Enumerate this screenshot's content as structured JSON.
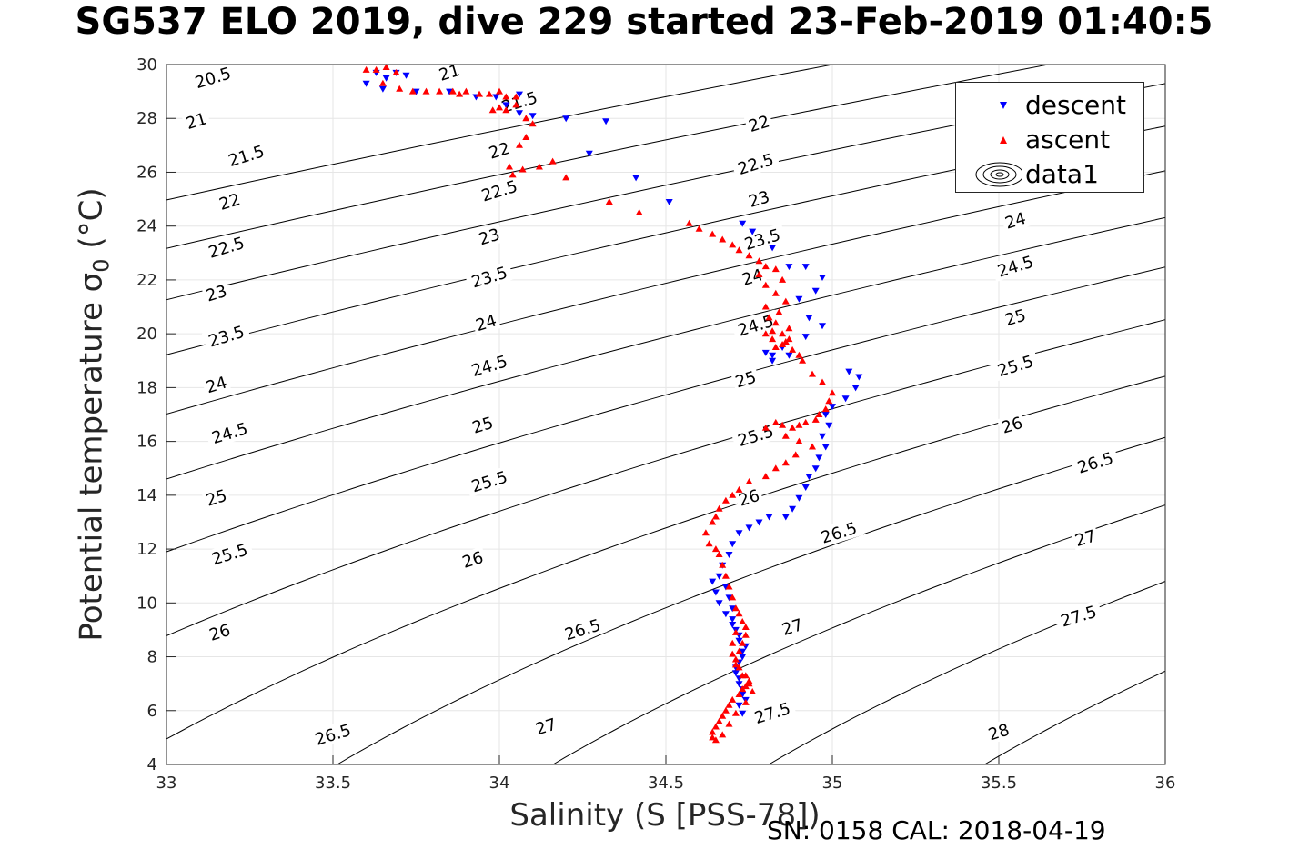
{
  "title": "SG537 ELO 2019, dive 229 started 23-Feb-2019 01:40:5",
  "footer": "SN: 0158  CAL: 2018-04-19",
  "chart_data": {
    "type": "scatter",
    "xlabel": "Salinity (S [PSS-78])",
    "ylabel_text": "Potential temperature σ",
    "ylabel_sub": "0",
    "ylabel_unit": " (°C)",
    "xlim": [
      33,
      36
    ],
    "ylim": [
      4,
      30
    ],
    "xticks": [
      "33",
      "33.5",
      "34",
      "34.5",
      "35",
      "35.5",
      "36"
    ],
    "yticks": [
      "4",
      "6",
      "8",
      "10",
      "12",
      "14",
      "16",
      "18",
      "20",
      "22",
      "24",
      "26",
      "28",
      "30"
    ],
    "grid": true,
    "legend_position": "top-right",
    "legend": [
      "descent",
      "ascent",
      "data1"
    ],
    "contour_levels": [
      "20.5",
      "21",
      "21.5",
      "22",
      "22.5",
      "23",
      "23.5",
      "24",
      "24.5",
      "25",
      "25.5",
      "26",
      "26.5",
      "27",
      "27.5",
      "28"
    ],
    "contour_labels": [
      {
        "text": "20.5",
        "s": 33.14,
        "t": 29.5
      },
      {
        "text": "21",
        "s": 33.85,
        "t": 29.7
      },
      {
        "text": "21",
        "s": 33.09,
        "t": 27.9
      },
      {
        "text": "21.5",
        "s": 34.06,
        "t": 28.6
      },
      {
        "text": "21.5",
        "s": 33.24,
        "t": 26.6
      },
      {
        "text": "22",
        "s": 34.78,
        "t": 27.8
      },
      {
        "text": "22",
        "s": 33.19,
        "t": 24.9
      },
      {
        "text": "22",
        "s": 34.0,
        "t": 26.8
      },
      {
        "text": "22.5",
        "s": 34.77,
        "t": 26.3
      },
      {
        "text": "22.5",
        "s": 33.18,
        "t": 23.2
      },
      {
        "text": "22.5",
        "s": 34.0,
        "t": 25.3
      },
      {
        "text": "23",
        "s": 34.78,
        "t": 25.0
      },
      {
        "text": "23",
        "s": 33.15,
        "t": 21.5
      },
      {
        "text": "23",
        "s": 33.97,
        "t": 23.6
      },
      {
        "text": "23.5",
        "s": 34.79,
        "t": 23.5
      },
      {
        "text": "23.5",
        "s": 33.18,
        "t": 19.9
      },
      {
        "text": "23.5",
        "s": 33.97,
        "t": 22.1
      },
      {
        "text": "24",
        "s": 35.55,
        "t": 24.2
      },
      {
        "text": "24",
        "s": 34.76,
        "t": 22.1
      },
      {
        "text": "24",
        "s": 33.15,
        "t": 18.1
      },
      {
        "text": "24",
        "s": 33.96,
        "t": 20.4
      },
      {
        "text": "24.5",
        "s": 35.55,
        "t": 22.5
      },
      {
        "text": "24.5",
        "s": 34.77,
        "t": 20.3
      },
      {
        "text": "24.5",
        "s": 33.19,
        "t": 16.3
      },
      {
        "text": "24.5",
        "s": 33.97,
        "t": 18.8
      },
      {
        "text": "25",
        "s": 35.55,
        "t": 20.6
      },
      {
        "text": "25",
        "s": 34.74,
        "t": 18.3
      },
      {
        "text": "25",
        "s": 33.15,
        "t": 13.9
      },
      {
        "text": "25",
        "s": 33.95,
        "t": 16.6
      },
      {
        "text": "25.5",
        "s": 35.55,
        "t": 18.8
      },
      {
        "text": "25.5",
        "s": 34.77,
        "t": 16.2
      },
      {
        "text": "25.5",
        "s": 33.19,
        "t": 11.8
      },
      {
        "text": "25.5",
        "s": 33.97,
        "t": 14.5
      },
      {
        "text": "26",
        "s": 35.54,
        "t": 16.6
      },
      {
        "text": "26",
        "s": 34.75,
        "t": 13.9
      },
      {
        "text": "26",
        "s": 33.16,
        "t": 8.9
      },
      {
        "text": "26",
        "s": 33.92,
        "t": 11.6
      },
      {
        "text": "26.5",
        "s": 35.79,
        "t": 15.2
      },
      {
        "text": "26.5",
        "s": 35.02,
        "t": 12.6
      },
      {
        "text": "26.5",
        "s": 33.5,
        "t": 5.1
      },
      {
        "text": "26.5",
        "s": 34.25,
        "t": 9.0
      },
      {
        "text": "27",
        "s": 35.76,
        "t": 12.4
      },
      {
        "text": "27",
        "s": 34.88,
        "t": 9.1
      },
      {
        "text": "27",
        "s": 34.14,
        "t": 5.4
      },
      {
        "text": "27.5",
        "s": 35.74,
        "t": 9.5
      },
      {
        "text": "27.5",
        "s": 34.82,
        "t": 5.9
      },
      {
        "text": "28",
        "s": 35.5,
        "t": 5.2
      }
    ],
    "descent_color": "#0000ff",
    "ascent_color": "#ff0000",
    "series": [
      {
        "name": "descent",
        "x": [
          33.63,
          33.66,
          33.69,
          33.72,
          33.6,
          33.65,
          33.75,
          33.85,
          33.93,
          33.99,
          34.02,
          34.06,
          34.06,
          34.1,
          34.2,
          34.32,
          34.27,
          34.41,
          34.51,
          34.73,
          34.76,
          34.82,
          34.87,
          34.92,
          34.97,
          34.95,
          34.9,
          34.93,
          34.97,
          34.92,
          34.85,
          34.87,
          34.82,
          34.82,
          34.8,
          35.05,
          35.08,
          35.07,
          35.04,
          35.0,
          34.98,
          34.99,
          34.97,
          34.98,
          34.96,
          34.95,
          34.93,
          34.92,
          34.9,
          34.88,
          34.86,
          34.81,
          34.78,
          34.75,
          34.72,
          34.7,
          34.69,
          34.67,
          34.66,
          34.68,
          34.69,
          34.7,
          34.7,
          34.71,
          34.72,
          34.73,
          34.72,
          34.71,
          34.72,
          34.73,
          34.72,
          34.73,
          34.74,
          34.73,
          34.72,
          34.71,
          34.73,
          34.74,
          34.72,
          34.7,
          34.68,
          34.66,
          34.65,
          34.64
        ],
        "y": [
          29.7,
          29.5,
          29.7,
          29.6,
          29.3,
          29.1,
          29.0,
          29.0,
          28.8,
          28.8,
          28.5,
          28.9,
          28.2,
          28.1,
          28.0,
          27.9,
          26.7,
          25.8,
          24.9,
          24.1,
          23.8,
          23.2,
          22.5,
          22.5,
          22.1,
          21.6,
          21.3,
          20.6,
          20.3,
          19.9,
          19.5,
          19.2,
          19.2,
          19.0,
          19.3,
          18.6,
          18.4,
          18.0,
          17.6,
          17.3,
          17.0,
          16.6,
          16.2,
          15.8,
          15.4,
          15.0,
          14.7,
          14.3,
          13.9,
          13.5,
          13.2,
          13.2,
          13.0,
          12.8,
          12.6,
          12.2,
          11.8,
          11.4,
          11.0,
          10.6,
          10.2,
          9.8,
          9.4,
          9.0,
          8.6,
          8.2,
          7.8,
          7.4,
          7.0,
          6.6,
          6.2,
          5.9,
          6.4,
          6.8,
          7.2,
          7.6,
          8.0,
          8.4,
          8.8,
          9.2,
          9.6,
          10.0,
          10.4,
          10.8
        ]
      },
      {
        "name": "ascent",
        "x": [
          33.6,
          33.63,
          33.66,
          33.69,
          33.65,
          33.7,
          33.74,
          33.78,
          33.82,
          33.86,
          33.88,
          33.9,
          33.94,
          33.97,
          34.0,
          34.02,
          34.05,
          34.0,
          33.98,
          34.02,
          34.05,
          34.08,
          34.1,
          34.08,
          34.06,
          34.03,
          34.07,
          34.04,
          34.16,
          34.12,
          34.2,
          34.33,
          34.42,
          34.57,
          34.6,
          34.64,
          34.67,
          34.7,
          34.72,
          34.75,
          34.78,
          34.8,
          34.83,
          34.78,
          34.85,
          34.8,
          34.83,
          34.86,
          34.8,
          34.84,
          34.81,
          34.83,
          34.87,
          34.8,
          34.82,
          34.85,
          34.88,
          34.83,
          34.9,
          34.87,
          34.85,
          34.82,
          34.86,
          34.91,
          34.94,
          34.97,
          35.0,
          34.99,
          34.98,
          34.96,
          34.95,
          34.92,
          34.9,
          34.88,
          34.85,
          34.83,
          34.8,
          34.86,
          34.9,
          34.94,
          34.89,
          34.86,
          34.83,
          34.8,
          34.75,
          34.72,
          34.7,
          34.68,
          34.66,
          34.65,
          34.64,
          34.62,
          34.63,
          34.65,
          34.66,
          34.67,
          34.68,
          34.69,
          34.7,
          34.71,
          34.72,
          34.73,
          34.74,
          34.74,
          34.73,
          34.72,
          34.71,
          34.72,
          34.74,
          34.75,
          34.74,
          34.73,
          34.72,
          34.7,
          34.69,
          34.68,
          34.67,
          34.66,
          34.65,
          34.64,
          34.64,
          34.65,
          34.67,
          34.69,
          34.71,
          34.74,
          34.76,
          34.75,
          34.73,
          34.71,
          34.7,
          34.7,
          34.71
        ],
        "y": [
          29.8,
          29.8,
          29.9,
          29.7,
          29.3,
          29.1,
          29.0,
          29.0,
          29.0,
          29.0,
          28.9,
          29.0,
          28.9,
          28.9,
          29.0,
          28.8,
          28.8,
          28.4,
          28.3,
          28.3,
          28.5,
          28.0,
          27.8,
          27.3,
          27.0,
          26.2,
          26.1,
          25.9,
          26.4,
          26.2,
          25.8,
          24.9,
          24.5,
          24.1,
          23.9,
          23.7,
          23.5,
          23.3,
          23.1,
          22.9,
          22.7,
          22.5,
          22.4,
          22.2,
          22.0,
          21.8,
          21.5,
          21.2,
          21.0,
          20.8,
          20.6,
          20.4,
          20.2,
          20.0,
          19.8,
          19.6,
          19.4,
          19.5,
          19.2,
          19.8,
          20.0,
          20.1,
          19.7,
          19.0,
          18.5,
          18.2,
          17.8,
          17.5,
          17.2,
          17.0,
          16.8,
          16.7,
          16.6,
          16.5,
          16.6,
          16.7,
          16.5,
          16.2,
          16.0,
          15.8,
          15.5,
          15.2,
          15.0,
          14.7,
          14.5,
          14.2,
          14.0,
          13.8,
          13.5,
          13.2,
          13.0,
          12.6,
          12.2,
          12.0,
          11.8,
          11.4,
          11.0,
          10.6,
          10.2,
          9.8,
          9.6,
          9.3,
          9.1,
          8.8,
          8.5,
          8.2,
          7.9,
          7.6,
          7.3,
          7.1,
          6.9,
          6.8,
          6.6,
          6.4,
          6.2,
          6.0,
          5.8,
          5.6,
          5.4,
          5.2,
          5.0,
          4.9,
          5.1,
          5.5,
          5.9,
          6.3,
          6.7,
          7.0,
          7.3,
          7.7,
          8.1,
          8.5,
          8.9
        ]
      }
    ]
  }
}
